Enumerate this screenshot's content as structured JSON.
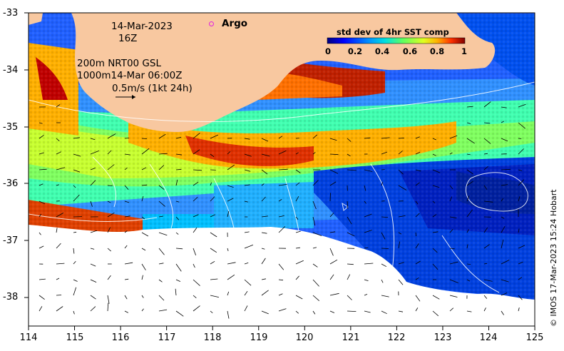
{
  "map": {
    "date": "14-Mar-2023",
    "hour": "16Z",
    "legend_line1": "200m  NRT00 GSL",
    "legend_line2": "1000m14-Mar 06:00Z",
    "scale_vector": "0.5m/s (1kt 24h)",
    "argo_label": "Argo",
    "colorbar_title": "std dev of 4hr SST comp",
    "colorbar_ticks": [
      "0",
      "0.2",
      "0.4",
      "0.6",
      "0.8",
      "1"
    ],
    "credit": "© IMOS 17-Mar-2023 15:24 Hobart",
    "lat_ticks": [
      "-33",
      "-34",
      "-35",
      "-36",
      "-37",
      "-38"
    ],
    "lon_ticks": [
      "114",
      "115",
      "116",
      "117",
      "118",
      "119",
      "120",
      "121",
      "122",
      "123",
      "124",
      "125"
    ],
    "colors": {
      "land": "#f8c8a0",
      "missing": "#ffffff",
      "cmap": [
        "#00007f",
        "#0000ff",
        "#0080ff",
        "#00e0ff",
        "#40ff80",
        "#c0ff40",
        "#ffd000",
        "#ff6000",
        "#c00000",
        "#7f0000"
      ]
    }
  }
}
